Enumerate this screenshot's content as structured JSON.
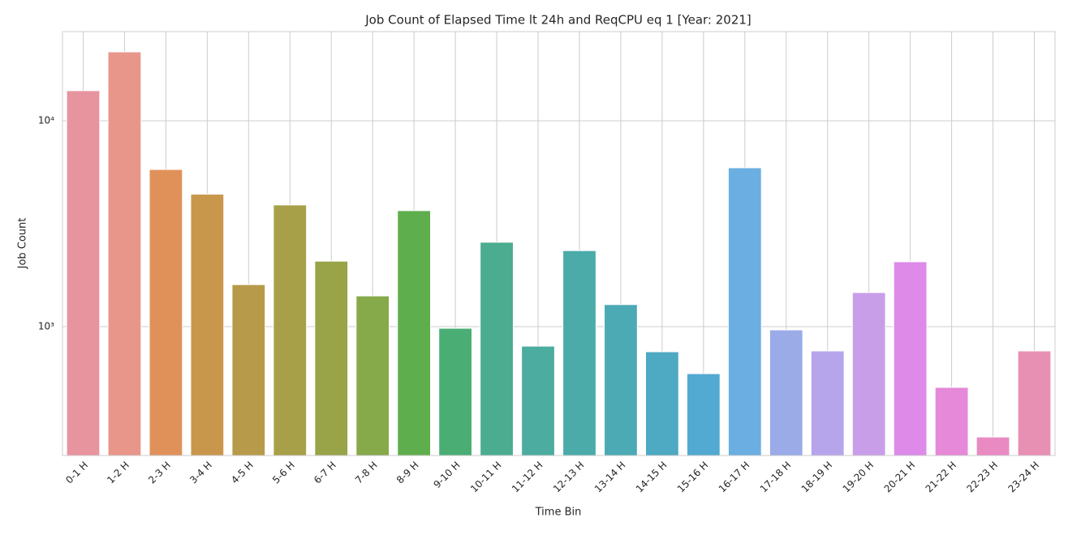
{
  "chart_data": {
    "type": "bar",
    "title": "Job Count of Elapsed Time lt 24h and ReqCPU eq 1 [Year: 2021]",
    "x_label": "Time Bin",
    "y_label": "Job Count",
    "log_scale": true,
    "grid": true,
    "categories": [
      "0-1 H",
      "1-2 H",
      "2-3 H",
      "3-4 H",
      "4-5 H",
      "5-6 H",
      "6-7 H",
      "7-8 H",
      "8-9 H",
      "9-10 H",
      "10-11 H",
      "11-12 H",
      "12-13 H",
      "13-14 H",
      "14-15 H",
      "15-16 H",
      "16-17 H",
      "17-18 H",
      "18-19 H",
      "19-20 H",
      "20-21 H",
      "21-22 H",
      "22-23 H",
      "23-24 H"
    ],
    "values": [
      14000,
      21600,
      5800,
      4400,
      1600,
      3900,
      2080,
      1410,
      3660,
      982,
      2570,
      804,
      2340,
      1280,
      755,
      591,
      5910,
      964,
      762,
      1464,
      2066,
      507,
      291,
      762
    ],
    "colors": [
      "#e8949f",
      "#e8968a",
      "#e0915a",
      "#c9974c",
      "#b79a4a",
      "#a7a048",
      "#98a447",
      "#86a94a",
      "#5fae4d",
      "#4aae74",
      "#4bac8f",
      "#4bac9f",
      "#4aaba9",
      "#4caab5",
      "#4ea9c2",
      "#52a9d1",
      "#6aaee2",
      "#9aabe8",
      "#b6a5eb",
      "#c99ee9",
      "#dd8ae9",
      "#e589d8",
      "#e98ac3",
      "#e890b4"
    ],
    "ylim": [
      236.6,
      27100
    ],
    "yticks": [
      {
        "value": 1000,
        "label": "10³"
      },
      {
        "value": 10000,
        "label": "10⁴"
      }
    ]
  }
}
